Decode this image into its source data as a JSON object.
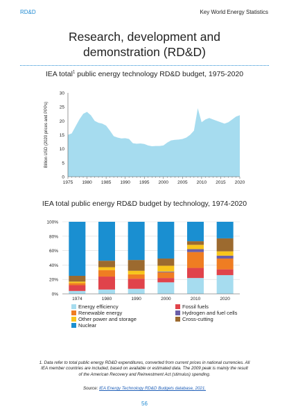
{
  "header": {
    "left": "RD&D",
    "right": "Key World Energy Statistics"
  },
  "title": {
    "line1": "Research, development and",
    "line2": "demonstration (RD&D)"
  },
  "chart1_title": {
    "text": "IEA total",
    "sup": "1",
    "rest": " public energy technology RD&D budget, 1975-2020"
  },
  "chart2_title": "IEA total public energy RD&D budget by technology, 1974-2020",
  "footnote": {
    "text": "1. Data refer to total public energy RD&D expenditures, converted from current prices in national currencies. All IEA member countries are included, based on available or estimated data. The 2009 peak is mainly the result of the American Recovery and Reinvestment Act (stimulus) spending.",
    "source_label": "Source:",
    "source_link": "IEA Energy Technology RD&D Budgets database, 2021."
  },
  "page_number": "56",
  "colors": {
    "area": "#a6dcef",
    "axis": "#555555",
    "grid": "#d9d9d9",
    "accent": "#1f8ad2"
  },
  "chart_data": [
    {
      "type": "area",
      "ylabel": "Billion USD (2020 prices and PPPs)",
      "ylim": [
        0,
        30
      ],
      "yticks": [
        0,
        5,
        10,
        15,
        20,
        25,
        30
      ],
      "xticks": [
        1975,
        1980,
        1985,
        1990,
        1995,
        2000,
        2005,
        2010,
        2015,
        2020
      ],
      "x": [
        1975,
        1976,
        1977,
        1978,
        1979,
        1980,
        1981,
        1982,
        1983,
        1984,
        1985,
        1986,
        1987,
        1988,
        1989,
        1990,
        1991,
        1992,
        1993,
        1994,
        1995,
        1996,
        1997,
        1998,
        1999,
        2000,
        2001,
        2002,
        2003,
        2004,
        2005,
        2006,
        2007,
        2008,
        2009,
        2010,
        2011,
        2012,
        2013,
        2014,
        2015,
        2016,
        2017,
        2018,
        2019,
        2020
      ],
      "y": [
        15.0,
        15.5,
        18.0,
        20.5,
        22.5,
        23.2,
        22.0,
        20.0,
        19.3,
        19.0,
        18.3,
        16.5,
        14.5,
        14.0,
        13.7,
        13.8,
        13.5,
        12.0,
        11.8,
        11.9,
        11.7,
        11.2,
        10.9,
        11.0,
        11.0,
        11.2,
        12.2,
        13.0,
        13.2,
        13.3,
        13.5,
        14.0,
        15.0,
        16.5,
        24.5,
        19.5,
        20.5,
        21.0,
        20.5,
        20.0,
        19.5,
        19.0,
        19.5,
        20.5,
        21.5,
        22.0
      ],
      "fill": "#a6dcef"
    },
    {
      "type": "bar",
      "stacked": true,
      "ylim": [
        0,
        100
      ],
      "yticks": [
        "0%",
        "20%",
        "40%",
        "60%",
        "80%",
        "100%"
      ],
      "categories": [
        "1974",
        "1980",
        "1990",
        "2000",
        "2010",
        "2020"
      ],
      "series": [
        {
          "name": "Energy efficiency",
          "color": "#a6dcef",
          "values": [
            4,
            6,
            7,
            16,
            22,
            26
          ]
        },
        {
          "name": "Fossil fuels",
          "color": "#e0434b",
          "values": [
            8,
            18,
            14,
            6,
            14,
            8
          ]
        },
        {
          "name": "Renewable energy",
          "color": "#ef7d22",
          "values": [
            3,
            9,
            6,
            8,
            22,
            15
          ]
        },
        {
          "name": "Hydrogen and fuel cells",
          "color": "#6a5ea8",
          "values": [
            0,
            0,
            0,
            1,
            4,
            4
          ]
        },
        {
          "name": "Other power and storage",
          "color": "#f8c51b",
          "values": [
            2,
            4,
            5,
            8,
            6,
            6
          ]
        },
        {
          "name": "Cross-cutting",
          "color": "#9c6a2f",
          "values": [
            8,
            9,
            15,
            10,
            5,
            18
          ]
        },
        {
          "name": "Nuclear",
          "color": "#1a8fd1",
          "values": [
            75,
            54,
            53,
            51,
            27,
            23
          ]
        }
      ]
    }
  ]
}
